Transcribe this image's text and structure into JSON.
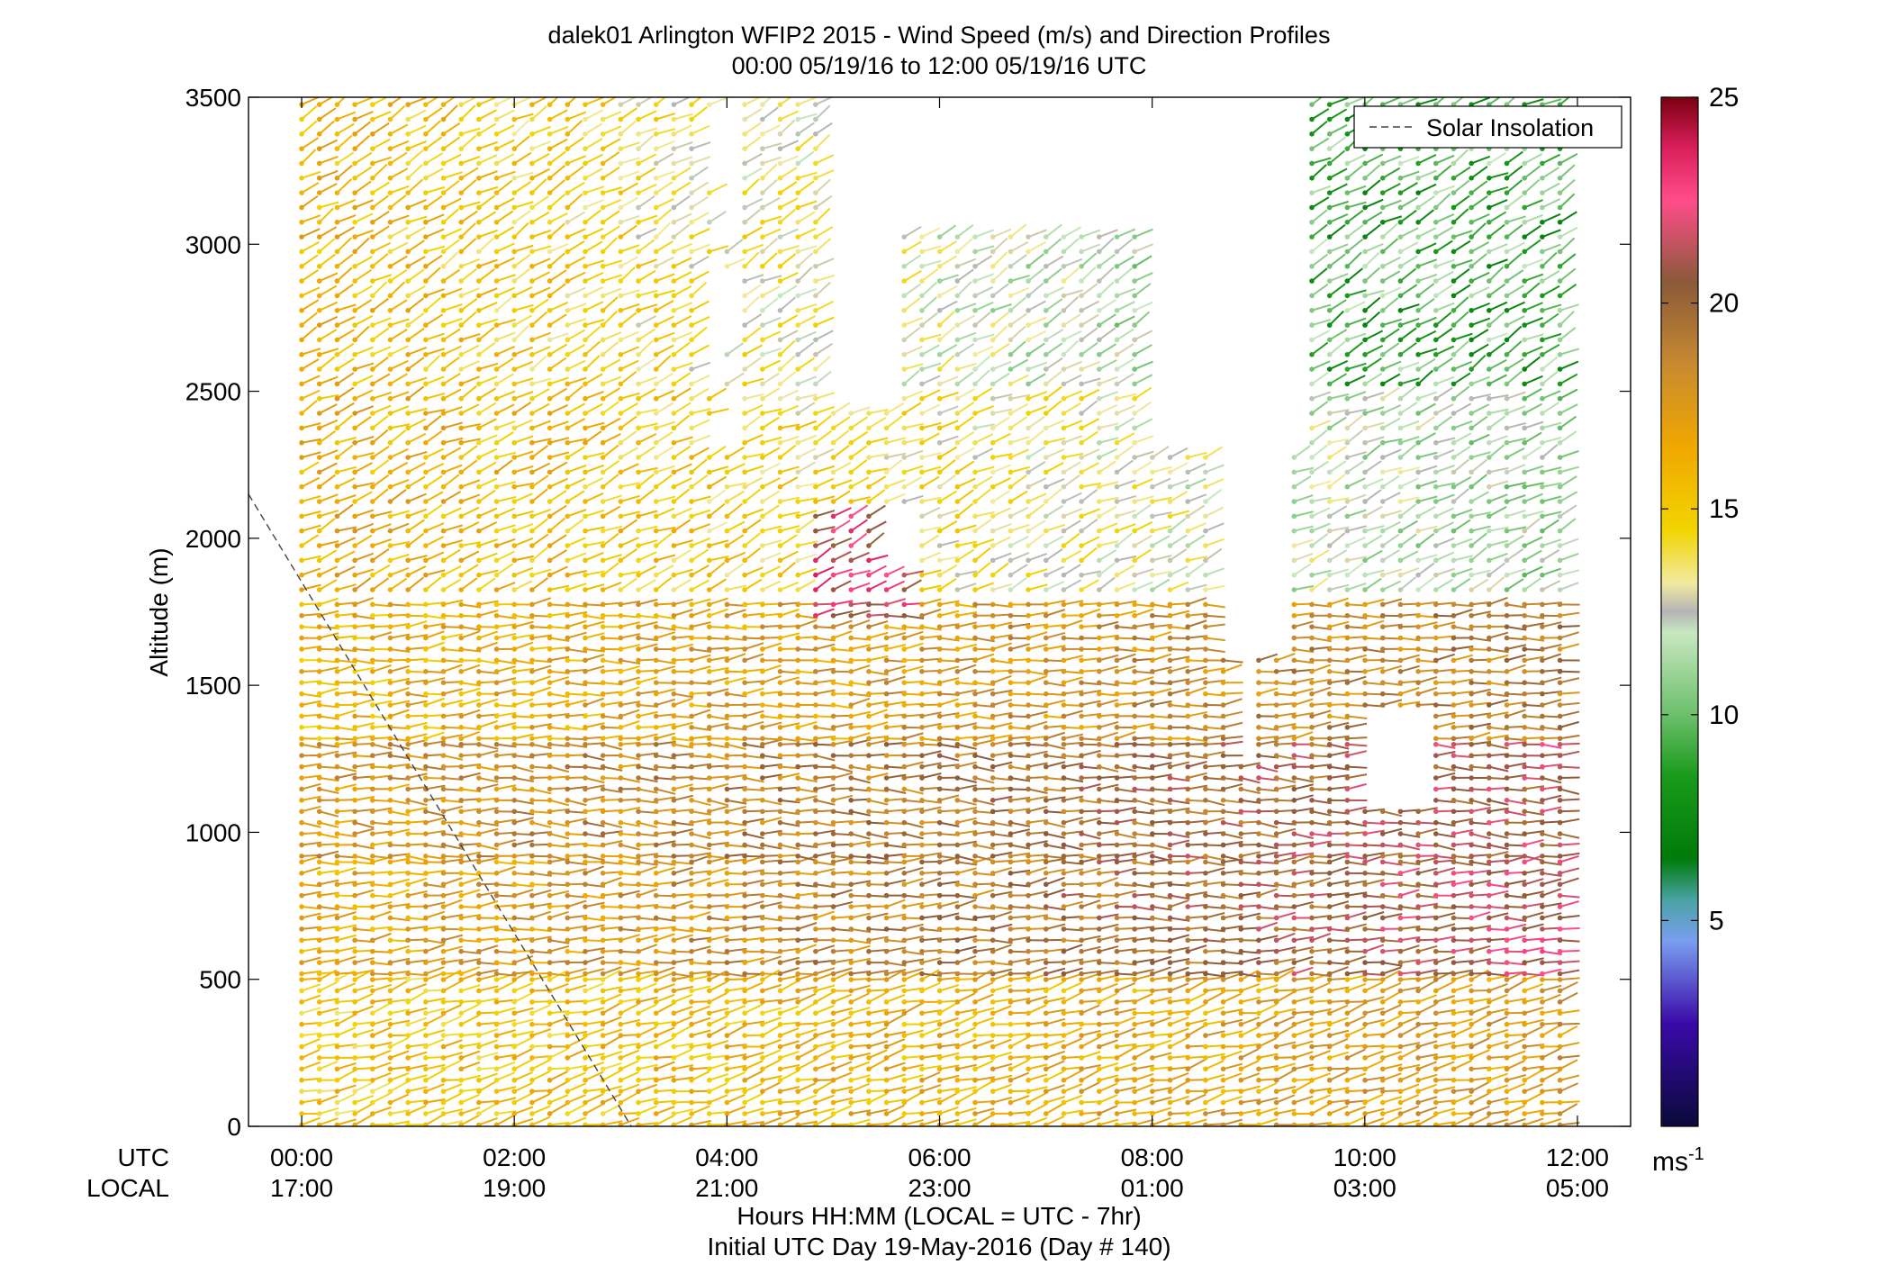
{
  "chart_data": {
    "type": "wind_barb_profile",
    "title": "dalek01 Arlington WFIP2 2015 - Wind Speed (m/s) and Direction Profiles",
    "subtitle": "00:00 05/19/16 to 12:00 05/19/16  UTC",
    "ylabel": "Altitude (m)",
    "ylim": [
      0,
      3500
    ],
    "yticks": [
      "0",
      "500",
      "1000",
      "1500",
      "2000",
      "2500",
      "3000",
      "3500"
    ],
    "xlim_hours": [
      -0.5,
      12.5
    ],
    "x_row_labels": [
      "UTC",
      "LOCAL"
    ],
    "x_ticks_utc": [
      "00:00",
      "02:00",
      "04:00",
      "06:00",
      "08:00",
      "10:00",
      "12:00"
    ],
    "x_ticks_local": [
      "17:00",
      "19:00",
      "21:00",
      "23:00",
      "01:00",
      "03:00",
      "05:00"
    ],
    "xlabel": "Hours HH:MM  (LOCAL = UTC - 7hr)",
    "xlabel2": "Initial UTC Day 19-May-2016 (Day # 140)",
    "legend": {
      "label": "Solar Insolation",
      "style": "dashed gray line",
      "position": "top-right"
    },
    "solar_insolation_line": {
      "x_hours": [
        -0.5,
        3.1
      ],
      "altitude_m": [
        2150,
        0
      ]
    },
    "colorbar": {
      "ticks": [
        "5",
        "10",
        "15",
        "20",
        "25"
      ],
      "range": [
        0,
        25
      ],
      "unit": "ms",
      "unit_exp": "-1",
      "colormap": [
        [
          0,
          "#0a0a3a"
        ],
        [
          2.5,
          "#3a0aa8"
        ],
        [
          4.5,
          "#7a9ef0"
        ],
        [
          5.5,
          "#4aa3a3"
        ],
        [
          6.5,
          "#007a0a"
        ],
        [
          8.5,
          "#1a9a1a"
        ],
        [
          10,
          "#6cbf6c"
        ],
        [
          12,
          "#c8e8c0"
        ],
        [
          12.5,
          "#b4b4b4"
        ],
        [
          13.2,
          "#f2eaa0"
        ],
        [
          14.5,
          "#f2d400"
        ],
        [
          16.5,
          "#f0a800"
        ],
        [
          18.5,
          "#c88a30"
        ],
        [
          20.5,
          "#8a5a3a"
        ],
        [
          22.5,
          "#ff4d8a"
        ],
        [
          23.8,
          "#d81e5a"
        ],
        [
          25,
          "#7a0010"
        ]
      ]
    },
    "time_step_hours": 0.1667,
    "profiles": [
      {
        "alt_min": 0,
        "alt_max": 500,
        "alt_step": 38,
        "speed_early": 15,
        "speed_late": 17.5,
        "direction_deg": 255
      },
      {
        "alt_min": 500,
        "alt_max": 900,
        "alt_step": 38,
        "speed_early": 16.5,
        "speed_late": 21.5,
        "direction_deg": 265
      },
      {
        "alt_min": 900,
        "alt_max": 1300,
        "alt_step": 38,
        "speed_early": 17.5,
        "speed_late": 21,
        "direction_deg": 270
      },
      {
        "alt_min": 1300,
        "alt_max": 1800,
        "alt_step": 38,
        "speed_early": 16,
        "speed_late": 19,
        "direction_deg": 265
      },
      {
        "alt_min": 1800,
        "alt_max": 2500,
        "alt_step": 50,
        "speed_early": 16.5,
        "speed_late": 11,
        "direction_deg": 245
      },
      {
        "alt_min": 2500,
        "alt_max": 3500,
        "alt_step": 50,
        "speed_early": 16,
        "speed_late": 9,
        "direction_deg": 240
      }
    ],
    "data_gaps": [
      {
        "t_start": 4.9,
        "t_end": 8.6,
        "alt_min": 3050,
        "alt_max": 3500
      },
      {
        "t_start": 4.9,
        "t_end": 5.6,
        "alt_min": 2450,
        "alt_max": 3050
      },
      {
        "t_start": 8.0,
        "t_end": 9.4,
        "alt_min": 2300,
        "alt_max": 3500
      },
      {
        "t_start": 8.6,
        "t_end": 9.2,
        "alt_min": 1600,
        "alt_max": 2300
      },
      {
        "t_start": 8.8,
        "t_end": 9.0,
        "alt_min": 1250,
        "alt_max": 1600
      },
      {
        "t_start": 10.0,
        "t_end": 10.6,
        "alt_min": 1100,
        "alt_max": 1400
      },
      {
        "t_start": 5.5,
        "t_end": 5.8,
        "alt_min": 1900,
        "alt_max": 2100
      },
      {
        "t_start": 12.0,
        "t_end": 12.5,
        "alt_min": 0,
        "alt_max": 3500
      }
    ]
  }
}
